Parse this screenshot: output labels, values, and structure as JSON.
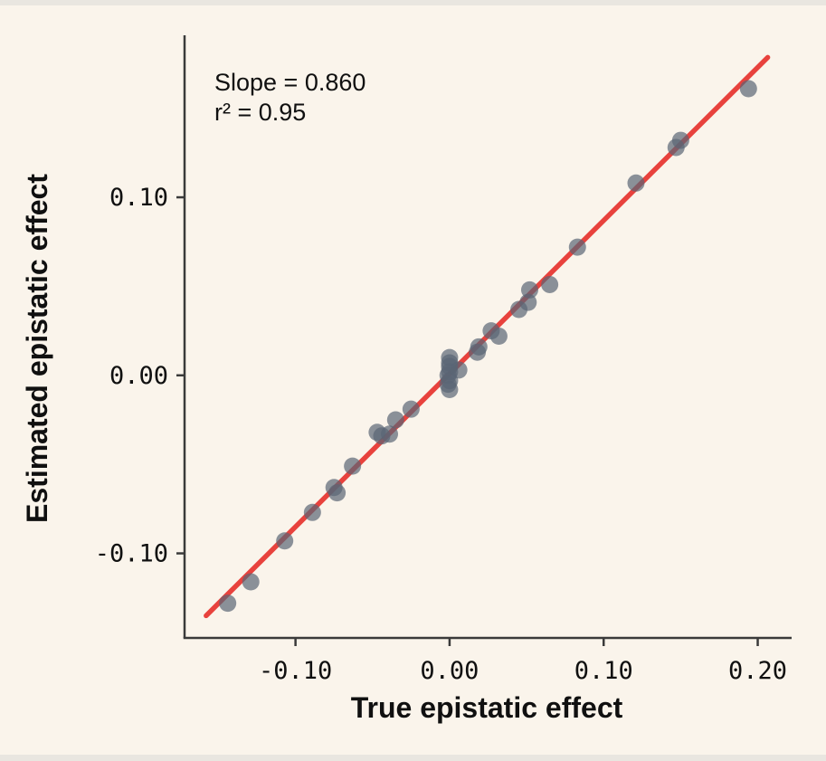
{
  "chart_data": {
    "type": "scatter",
    "title": "",
    "xlabel": "True epistatic effect",
    "ylabel": "Estimated epistatic effect",
    "annotation_lines": [
      "Slope = 0.860",
      "r² = 0.95"
    ],
    "slope": 0.86,
    "r_squared": 0.95,
    "xlim": [
      -0.172,
      0.222
    ],
    "ylim": [
      -0.1475,
      0.191
    ],
    "x_ticks": [
      -0.1,
      0.0,
      0.1,
      0.2
    ],
    "x_tick_labels": [
      "-0.10",
      "0.00",
      "0.10",
      "0.20"
    ],
    "y_ticks": [
      -0.1,
      0.0,
      0.1
    ],
    "y_tick_labels": [
      "-0.10",
      "0.00",
      "0.10"
    ],
    "legend": "none",
    "grid": false,
    "regression_line": {
      "x1": -0.158,
      "y1": -0.135,
      "x2": 0.2065,
      "y2": 0.1786
    },
    "points": [
      [
        -0.144,
        -0.128
      ],
      [
        -0.129,
        -0.116
      ],
      [
        -0.107,
        -0.093
      ],
      [
        -0.089,
        -0.077
      ],
      [
        -0.075,
        -0.063
      ],
      [
        -0.073,
        -0.066
      ],
      [
        -0.063,
        -0.051
      ],
      [
        -0.047,
        -0.032
      ],
      [
        -0.044,
        -0.034
      ],
      [
        -0.039,
        -0.033
      ],
      [
        -0.035,
        -0.025
      ],
      [
        -0.025,
        -0.019
      ],
      [
        0.0,
        0.01
      ],
      [
        0.0,
        0.007
      ],
      [
        0.0,
        0.005
      ],
      [
        0.0,
        0.002
      ],
      [
        -0.001,
        0.0
      ],
      [
        0.0,
        -0.003
      ],
      [
        -0.001,
        -0.005
      ],
      [
        0.0,
        -0.008
      ],
      [
        0.006,
        0.003
      ],
      [
        0.018,
        0.013
      ],
      [
        0.019,
        0.016
      ],
      [
        0.027,
        0.025
      ],
      [
        0.032,
        0.022
      ],
      [
        0.045,
        0.037
      ],
      [
        0.051,
        0.041
      ],
      [
        0.052,
        0.048
      ],
      [
        0.065,
        0.051
      ],
      [
        0.083,
        0.072
      ],
      [
        0.121,
        0.108
      ],
      [
        0.147,
        0.128
      ],
      [
        0.15,
        0.132
      ],
      [
        0.194,
        0.161
      ]
    ],
    "colors": {
      "background": "#faf4eb",
      "frame_edge": "#e9e6e0",
      "point": "#5a6575",
      "point_opacity": 0.7,
      "regression_line": "#e8423d",
      "axis": "#3a3a3a",
      "text": "#101010"
    }
  }
}
